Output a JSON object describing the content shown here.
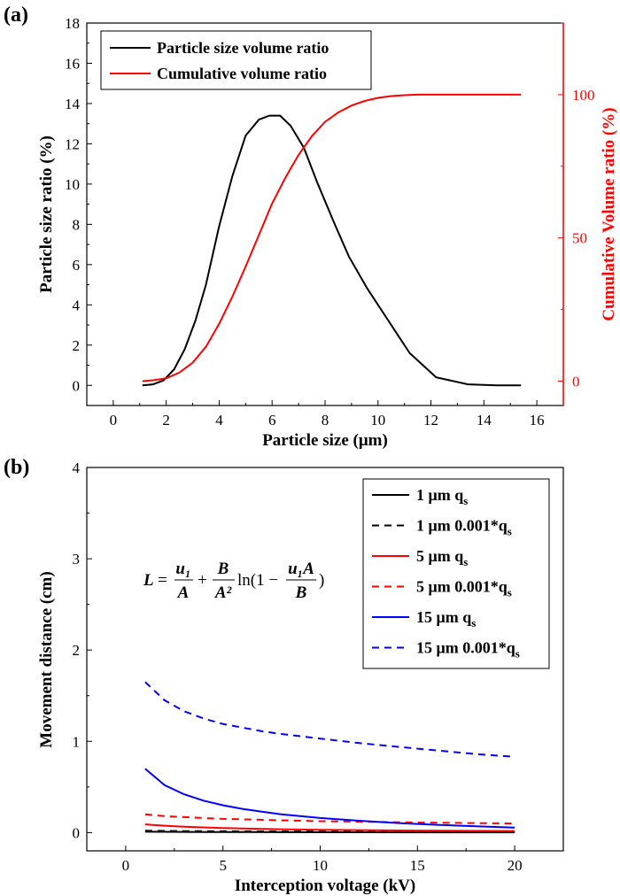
{
  "chart_data": [
    {
      "panel_label": "(a)",
      "type": "line",
      "xlabel": "Particle size (μm)",
      "ylabel": "Particle size ratio (%)",
      "y2label": "Cumulative Volume ratio (%)",
      "xlim": [
        -1,
        17
      ],
      "ylim": [
        -1,
        18
      ],
      "y2lim": [
        -8.5,
        125
      ],
      "xticks": [
        0,
        2,
        4,
        6,
        8,
        10,
        12,
        14,
        16
      ],
      "yticks": [
        0,
        2,
        4,
        6,
        8,
        10,
        12,
        14,
        16,
        18
      ],
      "y2ticks": [
        0,
        50,
        100
      ],
      "colors": {
        "left_axis": "#000000",
        "right_axis": "#ff0000"
      },
      "legend_position": "top-left",
      "series": [
        {
          "name": "Particle size volume ratio",
          "axis": "left",
          "color": "#000000",
          "x": [
            1.1,
            1.5,
            1.9,
            2.3,
            2.7,
            3.1,
            3.5,
            4.0,
            4.5,
            5.0,
            5.5,
            5.9,
            6.3,
            6.7,
            7.2,
            7.7,
            8.3,
            8.9,
            9.6,
            10.4,
            11.2,
            12.2,
            13.4,
            14.5,
            15.4
          ],
          "y": [
            0.0,
            0.05,
            0.25,
            0.8,
            1.8,
            3.2,
            5.0,
            7.9,
            10.4,
            12.4,
            13.2,
            13.4,
            13.4,
            12.9,
            11.8,
            10.1,
            8.2,
            6.4,
            4.8,
            3.2,
            1.6,
            0.4,
            0.05,
            0.0,
            0.0
          ]
        },
        {
          "name": "Cumulative volume ratio",
          "axis": "right",
          "color": "#ff0000",
          "x": [
            1.1,
            1.5,
            2.0,
            2.5,
            3.0,
            3.5,
            4.0,
            4.5,
            5.0,
            5.5,
            6.0,
            6.5,
            7.0,
            7.5,
            8.0,
            8.5,
            9.0,
            9.5,
            10.0,
            10.5,
            11.0,
            11.5,
            12.5,
            13.5,
            15.4
          ],
          "y": [
            0,
            0.3,
            1,
            3,
            6.5,
            12,
            20,
            29.5,
            40,
            51,
            62,
            71,
            79,
            85.5,
            90.5,
            93.8,
            96.2,
            97.8,
            98.9,
            99.5,
            99.8,
            100,
            100,
            100,
            100
          ]
        }
      ]
    },
    {
      "panel_label": "(b)",
      "type": "line",
      "xlabel": "Interception voltage (kV)",
      "ylabel": "Movement distance (cm)",
      "xlim": [
        -2,
        22.5
      ],
      "ylim": [
        -0.2,
        4
      ],
      "xticks": [
        0,
        5,
        10,
        15,
        20
      ],
      "yticks": [
        0,
        1,
        2,
        3,
        4
      ],
      "legend_position": "top-right",
      "formula": {
        "lhs": "L",
        "t1_num": "u₁",
        "t1_den": "A",
        "t2_num": "B",
        "t2_den": "A²",
        "ln_open": "ln(1 −",
        "t3_num": "u₁A",
        "t3_den": "B",
        "close": ")"
      },
      "series": [
        {
          "name": "1 μm q",
          "name_sub": "s",
          "color": "#000000",
          "dash": "solid",
          "x": [
            1,
            2,
            3,
            4,
            5,
            6,
            8,
            10,
            12,
            15,
            20
          ],
          "y": [
            0.01,
            0.009,
            0.008,
            0.007,
            0.006,
            0.006,
            0.005,
            0.004,
            0.004,
            0.003,
            0.003
          ]
        },
        {
          "name": "1 μm 0.001*q",
          "name_sub": "s",
          "color": "#000000",
          "dash": "dashed",
          "x": [
            1,
            2,
            3,
            4,
            5,
            6,
            8,
            10,
            12,
            15,
            20
          ],
          "y": [
            0.02,
            0.018,
            0.016,
            0.015,
            0.014,
            0.013,
            0.012,
            0.011,
            0.011,
            0.01,
            0.01
          ]
        },
        {
          "name": "5 μm q",
          "name_sub": "s",
          "color": "#ff0000",
          "dash": "solid",
          "x": [
            1,
            2,
            3,
            4,
            5,
            6,
            8,
            10,
            12,
            15,
            20
          ],
          "y": [
            0.09,
            0.075,
            0.065,
            0.057,
            0.05,
            0.045,
            0.037,
            0.031,
            0.027,
            0.022,
            0.017
          ]
        },
        {
          "name": "5 μm 0.001*q",
          "name_sub": "s",
          "color": "#ff0000",
          "dash": "dashed",
          "x": [
            1,
            2,
            3,
            4,
            5,
            6,
            8,
            10,
            12,
            15,
            20
          ],
          "y": [
            0.2,
            0.18,
            0.17,
            0.16,
            0.15,
            0.145,
            0.135,
            0.125,
            0.12,
            0.11,
            0.1
          ]
        },
        {
          "name": "15 μm q",
          "name_sub": "s",
          "color": "#0000ff",
          "dash": "solid",
          "x": [
            1,
            2,
            3,
            4,
            5,
            6,
            7,
            8,
            10,
            12,
            14,
            16,
            18,
            20
          ],
          "y": [
            0.7,
            0.52,
            0.42,
            0.35,
            0.3,
            0.26,
            0.23,
            0.2,
            0.16,
            0.13,
            0.105,
            0.085,
            0.07,
            0.055
          ]
        },
        {
          "name": "15 μm 0.001*q",
          "name_sub": "s",
          "color": "#0000ff",
          "dash": "dashed",
          "x": [
            1,
            2,
            3,
            4,
            5,
            6,
            7,
            8,
            10,
            12,
            14,
            16,
            18,
            20
          ],
          "y": [
            1.65,
            1.45,
            1.33,
            1.25,
            1.19,
            1.15,
            1.11,
            1.08,
            1.03,
            0.98,
            0.94,
            0.9,
            0.86,
            0.83
          ]
        }
      ]
    }
  ]
}
